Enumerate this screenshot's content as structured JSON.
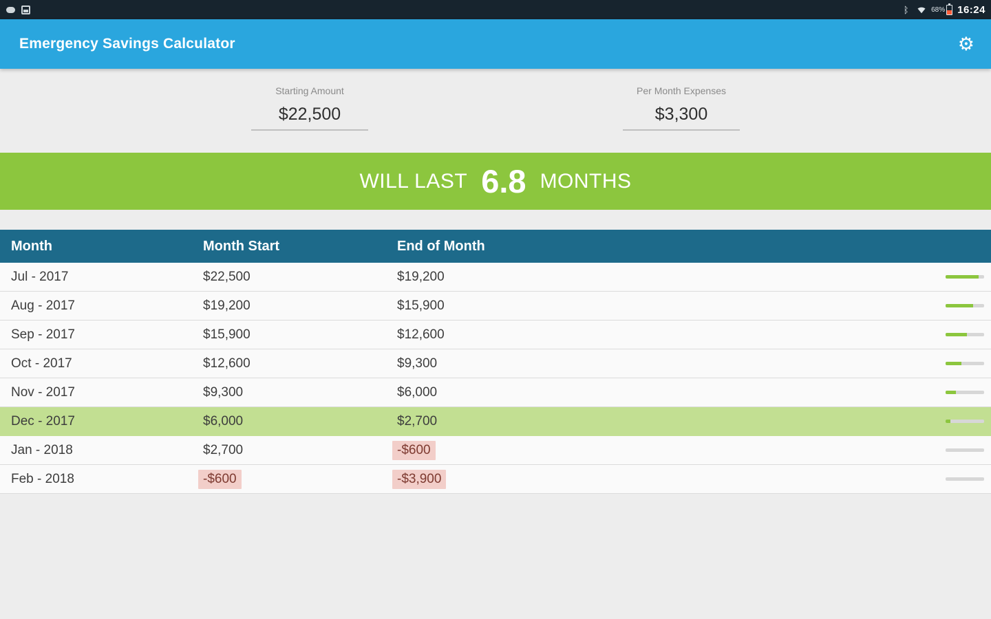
{
  "status_bar": {
    "time": "16:24",
    "battery_percent": "68%",
    "icons_left": [
      "gallery-icon",
      "notification-icon"
    ],
    "icons_right": [
      "bluetooth-icon",
      "wifi-icon",
      "battery-icon"
    ]
  },
  "app_bar": {
    "title": "Emergency Savings Calculator",
    "settings_icon": "gear-icon"
  },
  "inputs": {
    "starting_amount": {
      "label": "Starting Amount",
      "value": "$22,500"
    },
    "per_month_expenses": {
      "label": "Per Month Expenses",
      "value": "$3,300"
    }
  },
  "result_banner": {
    "prefix": "WILL LAST",
    "value": "6.8",
    "suffix": "MONTHS"
  },
  "table": {
    "headers": [
      "Month",
      "Month Start",
      "End of Month"
    ],
    "rows": [
      {
        "month": "Jul - 2017",
        "start": "$22,500",
        "end": "$19,200",
        "start_neg": false,
        "end_neg": false,
        "row_highlight": false,
        "progress": 0.85
      },
      {
        "month": "Aug - 2017",
        "start": "$19,200",
        "end": "$15,900",
        "start_neg": false,
        "end_neg": false,
        "row_highlight": false,
        "progress": 0.71
      },
      {
        "month": "Sep - 2017",
        "start": "$15,900",
        "end": "$12,600",
        "start_neg": false,
        "end_neg": false,
        "row_highlight": false,
        "progress": 0.56
      },
      {
        "month": "Oct - 2017",
        "start": "$12,600",
        "end": "$9,300",
        "start_neg": false,
        "end_neg": false,
        "row_highlight": false,
        "progress": 0.41
      },
      {
        "month": "Nov - 2017",
        "start": "$9,300",
        "end": "$6,000",
        "start_neg": false,
        "end_neg": false,
        "row_highlight": false,
        "progress": 0.27
      },
      {
        "month": "Dec - 2017",
        "start": "$6,000",
        "end": "$2,700",
        "start_neg": false,
        "end_neg": false,
        "row_highlight": true,
        "progress": 0.12
      },
      {
        "month": "Jan - 2018",
        "start": "$2,700",
        "end": "-$600",
        "start_neg": false,
        "end_neg": true,
        "row_highlight": false,
        "progress": 0
      },
      {
        "month": "Feb - 2018",
        "start": "-$600",
        "end": "-$3,900",
        "start_neg": true,
        "end_neg": true,
        "row_highlight": false,
        "progress": 0
      }
    ]
  },
  "colors": {
    "app_bar_blue": "#2AA6DE",
    "banner_green": "#8CC63E",
    "table_header_teal": "#1D6A8A",
    "row_highlight_green": "#C2DF92",
    "negative_bg_pink": "#F2CEC9",
    "negative_text": "#7D3A30",
    "progress_track_gray": "#D7D7D7",
    "status_bar_dark": "#17242E"
  }
}
